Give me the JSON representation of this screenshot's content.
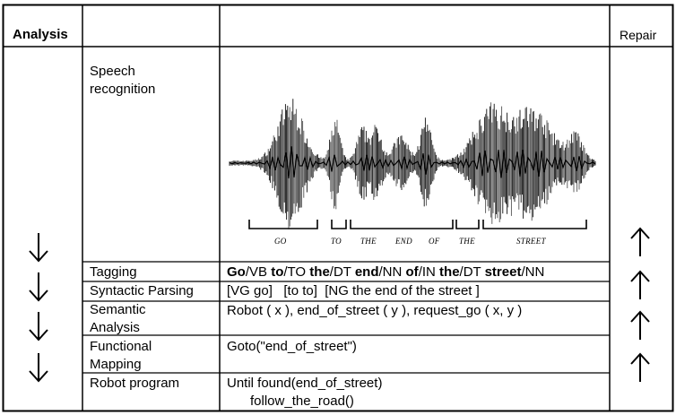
{
  "headers": {
    "analysis": "Analysis",
    "repair": "Repair"
  },
  "speech": {
    "label_line1": "Speech",
    "label_line2": "recognition",
    "words": [
      "GO",
      "TO",
      "THE",
      "END",
      "OF",
      "THE",
      "STREET"
    ]
  },
  "rows": {
    "tagging": {
      "label": "Tagging",
      "tokens": [
        {
          "word": "Go",
          "tag": "/VB "
        },
        {
          "word": "to",
          "tag": "/TO "
        },
        {
          "word": "the",
          "tag": "/DT "
        },
        {
          "word": "end",
          "tag": "/NN "
        },
        {
          "word": "of",
          "tag": "/IN "
        },
        {
          "word": "the",
          "tag": "/DT "
        },
        {
          "word": "street",
          "tag": "/NN"
        }
      ]
    },
    "parsing": {
      "label": "Syntactic Parsing",
      "content": "[VG go]   [to to]  [NG the end of the street ]"
    },
    "semantic": {
      "label_line1": "Semantic",
      "label_line2": "Analysis",
      "content": "Robot ( x ), end_of_street ( y ), request_go ( x, y )"
    },
    "functional": {
      "label_line1": "Functional",
      "label_line2": "Mapping",
      "content": "Goto(\"end_of_street\")"
    },
    "program": {
      "label": "Robot program",
      "content_line1": "Until found(end_of_street)",
      "content_line2": "follow_the_road()"
    }
  },
  "icons": {
    "down_arrow": "arrow-down-icon",
    "up_arrow": "arrow-up-icon"
  }
}
